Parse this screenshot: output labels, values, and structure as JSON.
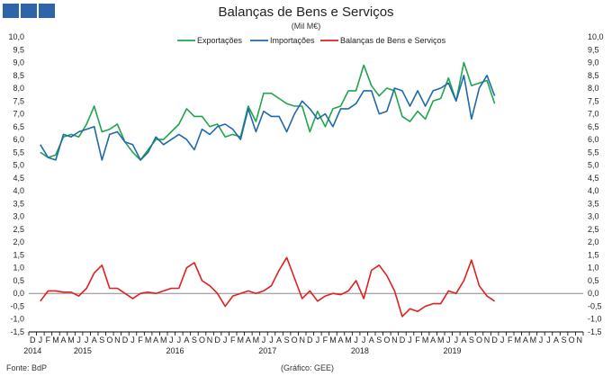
{
  "header": {
    "title": "Balanças de Bens e Serviços",
    "subtitle": "(Mil M€)"
  },
  "footer": {
    "source": "Fonte: BdP",
    "credit": "(Gráfico: GEE)"
  },
  "colors": {
    "logo": "#2e64a8",
    "exportacoes": "#1fa64b",
    "importacoes": "#1f6aad",
    "balancas": "#e02020",
    "zero_line": "#8a8a8a",
    "axis": "#000000"
  },
  "chart_data": {
    "type": "line",
    "ylim": [
      -1.5,
      10.0
    ],
    "ytick_step": 0.5,
    "legend_position": "top",
    "grid": false,
    "month_labels": [
      "D",
      "J",
      "F",
      "M",
      "A",
      "M",
      "J",
      "J",
      "A",
      "S",
      "O",
      "N",
      "D",
      "J",
      "F",
      "M",
      "A",
      "M",
      "J",
      "J",
      "A",
      "S",
      "O",
      "N",
      "D",
      "J",
      "F",
      "M",
      "A",
      "M",
      "J",
      "J",
      "A",
      "S",
      "O",
      "N",
      "D",
      "J",
      "F",
      "M",
      "A",
      "M",
      "J",
      "J",
      "A",
      "S",
      "O",
      "N",
      "D",
      "J",
      "F",
      "M",
      "A",
      "M",
      "J",
      "J",
      "A",
      "S",
      "O",
      "N",
      "D",
      "J",
      "F",
      "M",
      "A",
      "M",
      "J",
      "J",
      "A",
      "S",
      "O",
      "N"
    ],
    "year_labels": [
      {
        "label": "2014",
        "index": 0
      },
      {
        "label": "2015",
        "index": 6.5
      },
      {
        "label": "2016",
        "index": 18.5
      },
      {
        "label": "2017",
        "index": 30.5
      },
      {
        "label": "2018",
        "index": 42.5
      },
      {
        "label": "2019",
        "index": 54.5
      }
    ],
    "series": [
      {
        "name": "Exportações",
        "color": "#1fa64b",
        "values": [
          5.5,
          5.3,
          5.4,
          6.1,
          6.2,
          6.1,
          6.6,
          7.3,
          6.3,
          6.4,
          6.6,
          5.9,
          5.5,
          5.2,
          5.6,
          6.0,
          6.0,
          6.3,
          6.6,
          7.2,
          6.9,
          6.9,
          6.5,
          6.6,
          6.1,
          6.2,
          6.1,
          7.3,
          6.7,
          7.8,
          7.8,
          7.6,
          7.4,
          7.3,
          7.3,
          6.3,
          7.1,
          6.5,
          7.2,
          7.3,
          7.9,
          7.9,
          8.9,
          8.1,
          7.7,
          8.0,
          7.9,
          6.9,
          6.7,
          7.1,
          6.8,
          7.5,
          7.6,
          8.4,
          7.5,
          9.0,
          8.1,
          8.2,
          8.3,
          7.4
        ]
      },
      {
        "name": "Importações",
        "color": "#1f6aad",
        "values": [
          5.8,
          5.3,
          5.2,
          6.2,
          6.1,
          6.3,
          6.4,
          6.5,
          5.2,
          6.2,
          6.3,
          5.9,
          5.8,
          5.2,
          5.5,
          6.1,
          5.8,
          6.0,
          6.2,
          6.0,
          5.6,
          6.4,
          6.2,
          6.5,
          6.6,
          6.4,
          6.0,
          7.2,
          6.3,
          7.1,
          6.9,
          6.9,
          6.3,
          7.0,
          7.5,
          7.2,
          6.8,
          7.0,
          6.5,
          7.2,
          7.2,
          7.4,
          7.9,
          7.9,
          7.0,
          7.1,
          8.0,
          7.9,
          7.3,
          7.9,
          7.3,
          7.9,
          8.0,
          8.2,
          7.5,
          8.5,
          6.8,
          8.0,
          8.5,
          7.7
        ]
      },
      {
        "name": "Balanças de Bens e Serviços",
        "color": "#e02020",
        "values": [
          -0.3,
          0.1,
          0.1,
          0.05,
          0.05,
          -0.1,
          0.2,
          0.8,
          1.1,
          0.2,
          0.2,
          0.0,
          -0.2,
          0.0,
          0.05,
          0.0,
          0.1,
          0.2,
          0.2,
          1.0,
          1.2,
          0.5,
          0.3,
          0.0,
          -0.5,
          -0.1,
          0.0,
          0.1,
          0.0,
          0.1,
          0.3,
          0.9,
          1.4,
          0.6,
          -0.2,
          0.1,
          -0.3,
          -0.1,
          0.0,
          -0.05,
          0.1,
          0.5,
          -0.2,
          0.9,
          1.1,
          0.7,
          0.1,
          -0.9,
          -0.6,
          -0.7,
          -0.5,
          -0.4,
          -0.4,
          0.1,
          0.0,
          0.5,
          1.3,
          0.3,
          -0.1,
          -0.3
        ]
      }
    ]
  }
}
